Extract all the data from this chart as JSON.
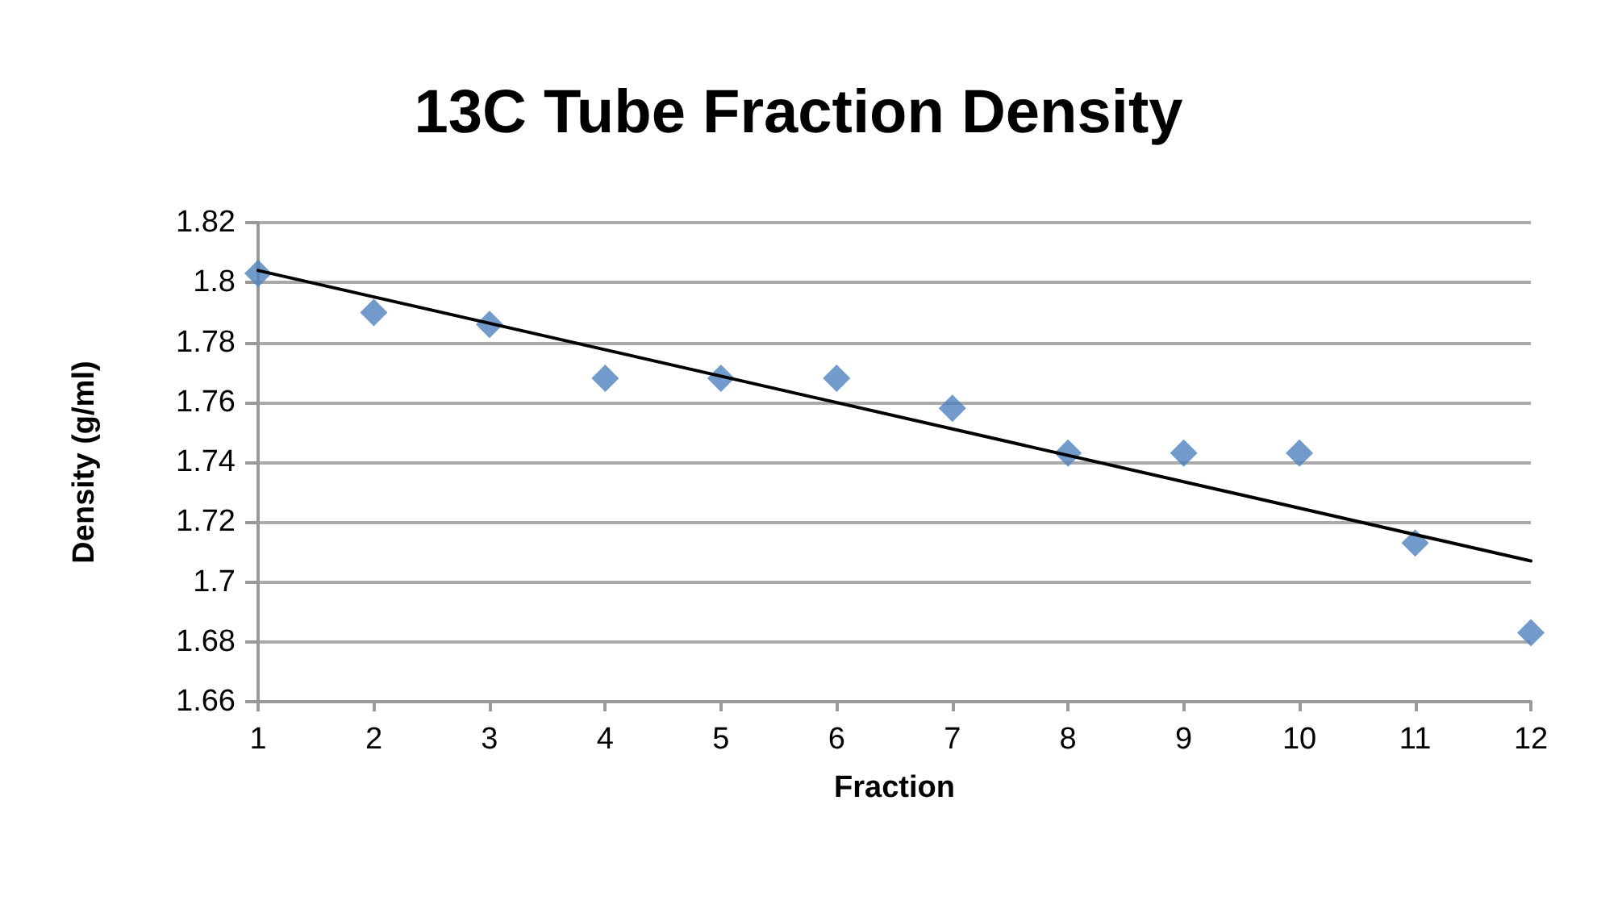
{
  "chart_data": {
    "type": "scatter",
    "title": "13C Tube Fraction Density",
    "xlabel": "Fraction",
    "ylabel": "Density (g/ml)",
    "xlim": [
      1,
      12
    ],
    "xticks": [
      1,
      2,
      3,
      4,
      5,
      6,
      7,
      8,
      9,
      10,
      11,
      12
    ],
    "ylim": [
      1.66,
      1.82
    ],
    "yticks": [
      1.66,
      1.68,
      1.7,
      1.72,
      1.74,
      1.76,
      1.78,
      1.8,
      1.82
    ],
    "grid": "y",
    "marker": "diamond",
    "x": [
      1,
      2,
      3,
      4,
      5,
      6,
      7,
      8,
      9,
      10,
      11,
      12
    ],
    "series": [
      {
        "color": "#4f81bd",
        "values": [
          1.803,
          1.79,
          1.786,
          1.768,
          1.768,
          1.768,
          1.758,
          1.743,
          1.743,
          1.743,
          1.713,
          1.683
        ]
      },
      {
        "type": "line",
        "color": "#000000",
        "marker": "none",
        "line_style": "solid",
        "x": [
          1,
          12
        ],
        "values": [
          1.804,
          1.707
        ]
      }
    ]
  }
}
